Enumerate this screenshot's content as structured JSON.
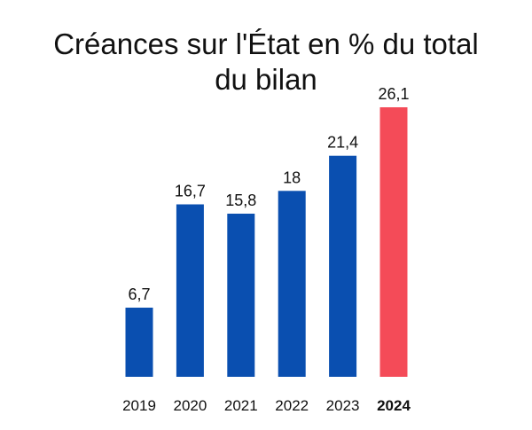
{
  "chart_data": {
    "type": "bar",
    "title_lines": [
      "Créances sur l'État en % du total",
      "du bilan"
    ],
    "categories": [
      "2019",
      "2020",
      "2021",
      "2022",
      "2023",
      "2024"
    ],
    "values": [
      6.7,
      16.7,
      15.8,
      18,
      21.4,
      26.1
    ],
    "value_labels": [
      "6,7",
      "16,7",
      "15,8",
      "18",
      "21,4",
      "26,1"
    ],
    "highlight_index": 5,
    "colors": {
      "default": "#0a4fb0",
      "highlight": "#f44b58"
    },
    "xlabel": "",
    "ylabel": "",
    "ylim": [
      0,
      26.1
    ],
    "grid": false,
    "legend": "none"
  }
}
